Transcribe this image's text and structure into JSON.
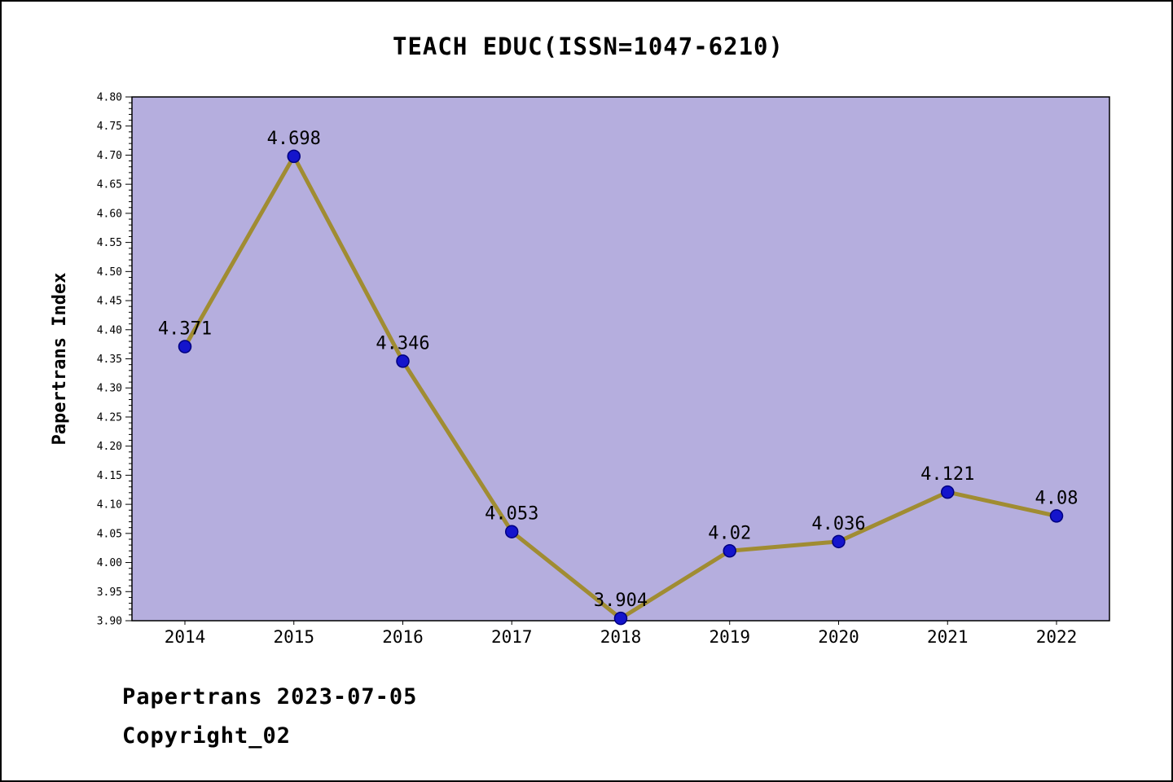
{
  "page": {
    "title": "TEACH EDUC(ISSN=1047-6210)"
  },
  "footer": {
    "line1": "Papertrans 2023-07-05",
    "line2": "Copyright_02"
  },
  "chart_data": {
    "type": "line",
    "title": "TEACH EDUC(ISSN=1047-6210)",
    "ylabel": "Papertrans Index",
    "xlabel": "",
    "categories": [
      "2014",
      "2015",
      "2016",
      "2017",
      "2018",
      "2019",
      "2020",
      "2021",
      "2022"
    ],
    "values": [
      4.371,
      4.698,
      4.346,
      4.053,
      3.904,
      4.02,
      4.036,
      4.121,
      4.08
    ],
    "point_labels": [
      "4.371",
      "4.698",
      "4.346",
      "4.053",
      "3.904",
      "4.02",
      "4.036",
      "4.121",
      "4.08"
    ],
    "ylim": [
      3.9,
      4.8
    ],
    "ytick_major": 0.05,
    "ytick_minor": 0.01,
    "grid": false,
    "legend": "none",
    "colors": {
      "plot_bg": "#b5aede",
      "line": "#a08c32",
      "marker_fill": "#1414cc",
      "marker_edge": "#000080",
      "axis": "#000000",
      "text": "#000000"
    }
  }
}
